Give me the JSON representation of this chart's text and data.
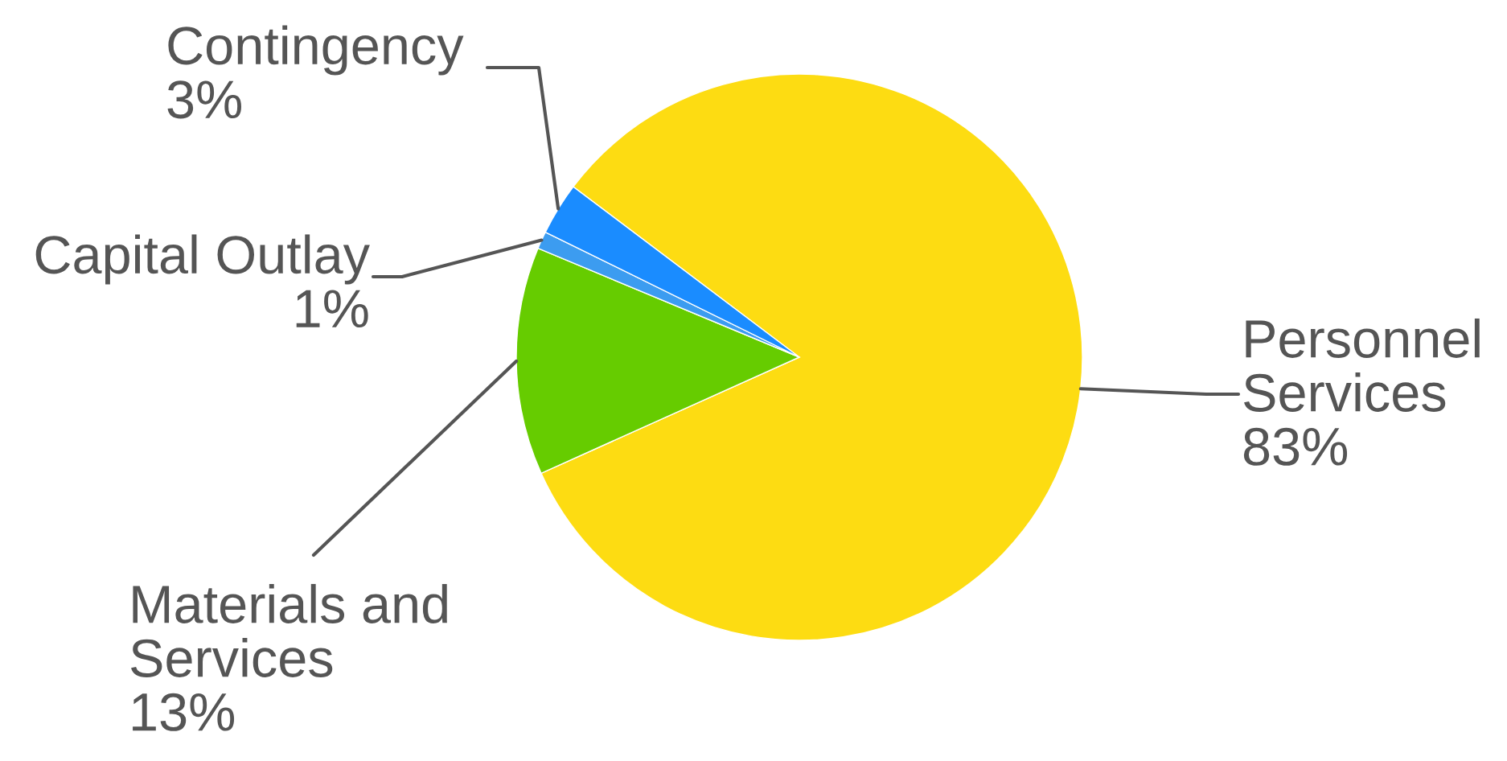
{
  "chart_data": {
    "type": "pie",
    "categories": [
      "Personnel Services",
      "Materials and Services",
      "Capital Outlay",
      "Contingency"
    ],
    "values": [
      83,
      13,
      1,
      3
    ],
    "value_labels": [
      "83%",
      "13%",
      "1%",
      "3%"
    ],
    "colors": [
      "#fddc12",
      "#66cc00",
      "#3c9cf0",
      "#1a8cff"
    ]
  }
}
